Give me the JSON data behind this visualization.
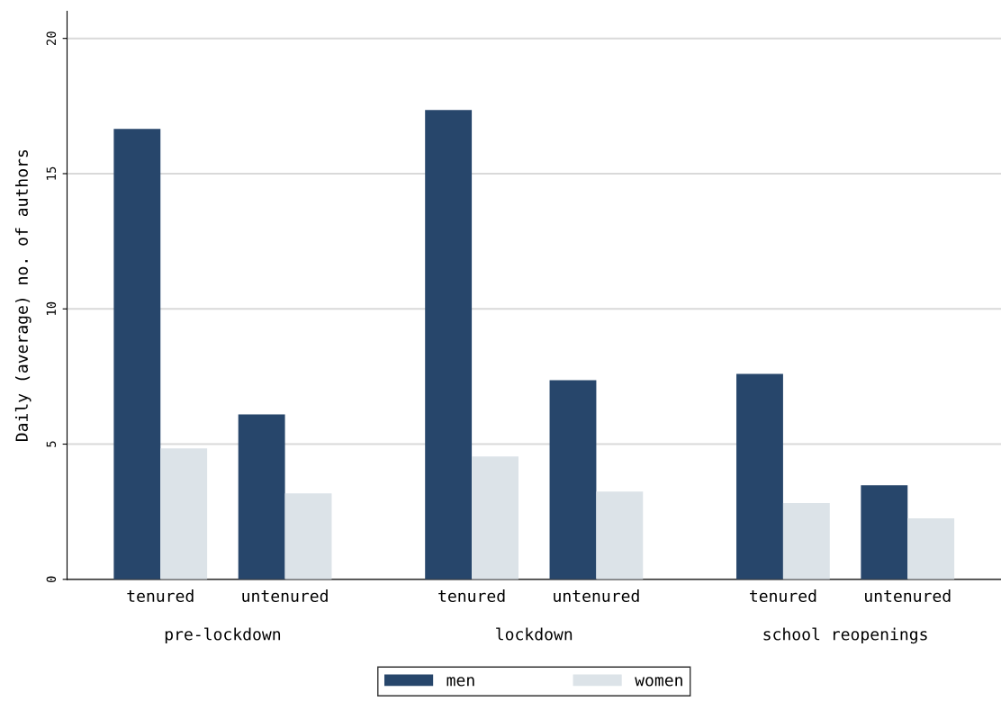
{
  "chart_data": {
    "type": "bar",
    "ylabel": "Daily (average) no. of authors",
    "categories": [
      "tenured",
      "untenured",
      "tenured",
      "untenured",
      "tenured",
      "untenured"
    ],
    "annotations": [
      "pre-lockdown",
      "lockdown",
      "school reopenings"
    ],
    "series": [
      {
        "name": "men",
        "color": "#27466b",
        "values": [
          16.65,
          6.1,
          17.35,
          7.36,
          7.6,
          3.48
        ]
      },
      {
        "name": "women",
        "color": "#dce3e8",
        "values": [
          4.84,
          3.18,
          4.54,
          3.25,
          2.82,
          2.26
        ]
      }
    ],
    "ylim": [
      0,
      21
    ],
    "yticks": [
      0,
      5,
      10,
      15,
      20
    ],
    "grid": "y",
    "legend": "bottom"
  }
}
